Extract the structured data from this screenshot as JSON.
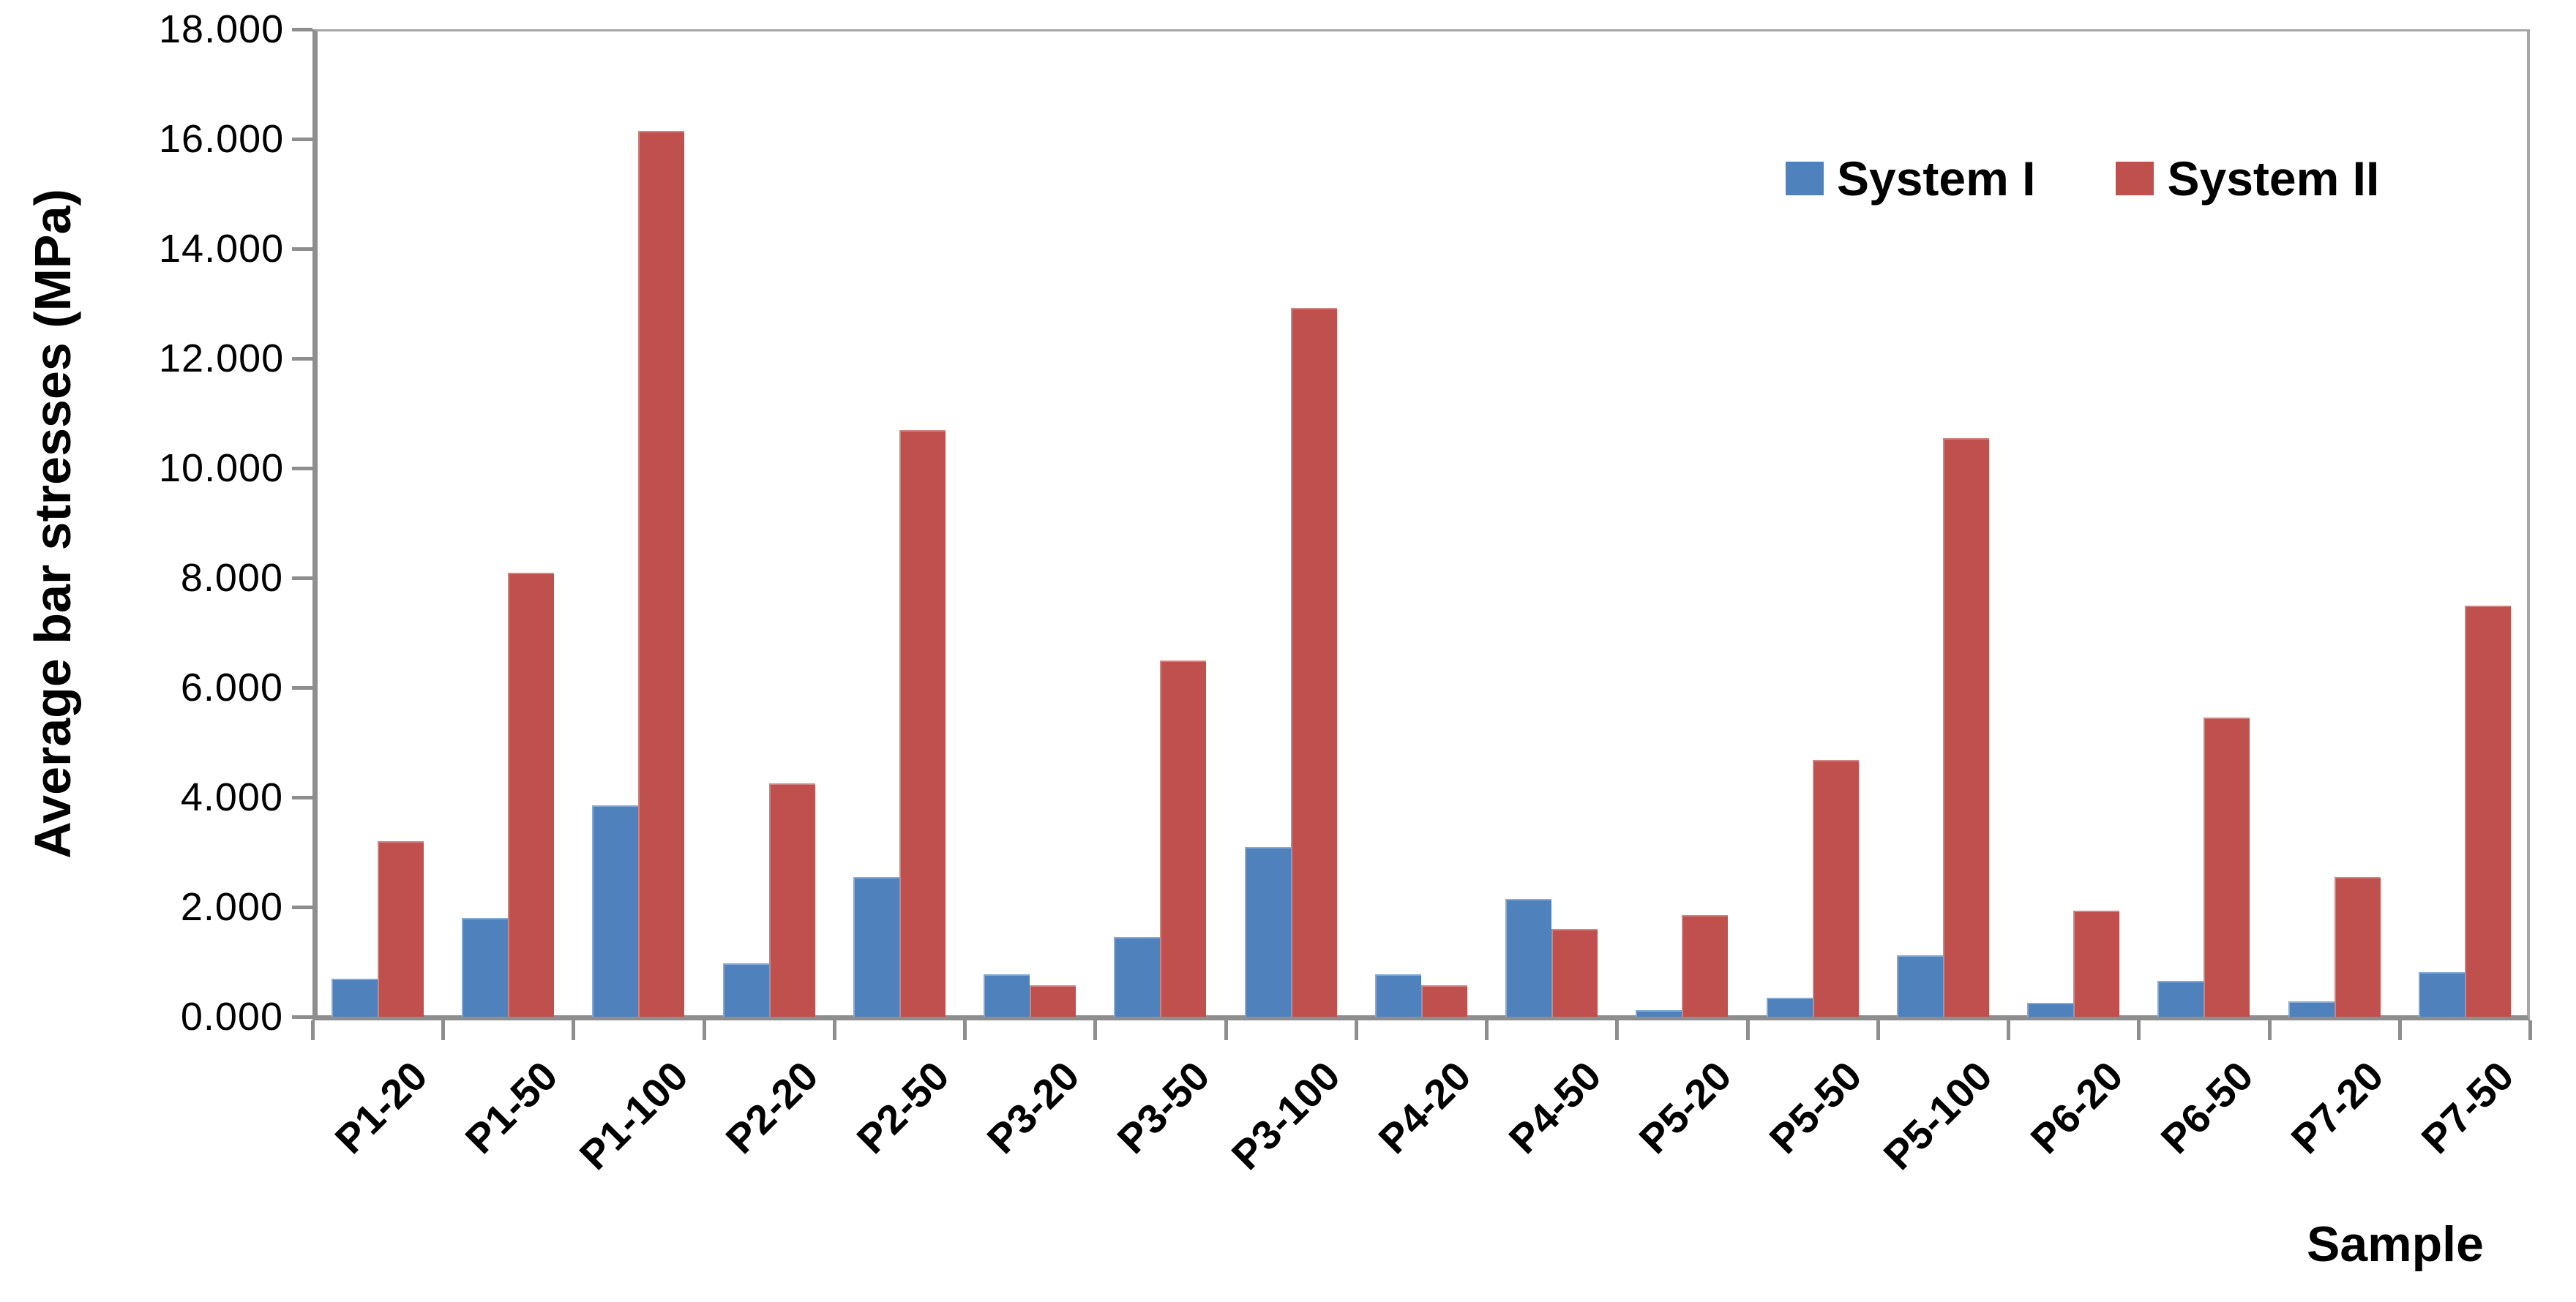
{
  "chart_data": {
    "type": "bar",
    "title": "",
    "xlabel": "Sample",
    "ylabel": "Average bar stresses (MPa)",
    "ylim": [
      0,
      18
    ],
    "y_tick_step": 2,
    "y_tick_labels": [
      "0.000",
      "2.000",
      "4.000",
      "6.000",
      "8.000",
      "10.000",
      "12.000",
      "14.000",
      "16.000",
      "18.000"
    ],
    "grid": false,
    "legend_position": "top-right-inside",
    "categories": [
      "P1-20",
      "P1-50",
      "P1-100",
      "P2-20",
      "P2-50",
      "P3-20",
      "P3-50",
      "P3-100",
      "P4-20",
      "P4-50",
      "P5-20",
      "P5-50",
      "P5-100",
      "P6-20",
      "P6-50",
      "P7-20",
      "P7-50"
    ],
    "series": [
      {
        "name": "System I",
        "color": "#4f81bd",
        "edge_color": "#85aad5",
        "values": [
          0.7,
          1.8,
          3.85,
          0.98,
          2.55,
          0.78,
          1.45,
          3.1,
          0.78,
          2.15,
          0.12,
          0.35,
          1.12,
          0.26,
          0.65,
          0.28,
          0.82
        ]
      },
      {
        "name": "System II",
        "color": "#c0504d",
        "edge_color": "#d0837f",
        "values": [
          3.2,
          8.1,
          16.15,
          4.25,
          10.7,
          0.58,
          6.5,
          12.92,
          0.58,
          1.6,
          1.85,
          4.68,
          10.55,
          1.93,
          5.45,
          2.55,
          7.5
        ]
      }
    ],
    "axis_colors": {
      "axis_line": "#8e8e8e",
      "plot_border": "#a6a6a6",
      "tick": "#8e8e8e",
      "text": "#000000"
    }
  }
}
